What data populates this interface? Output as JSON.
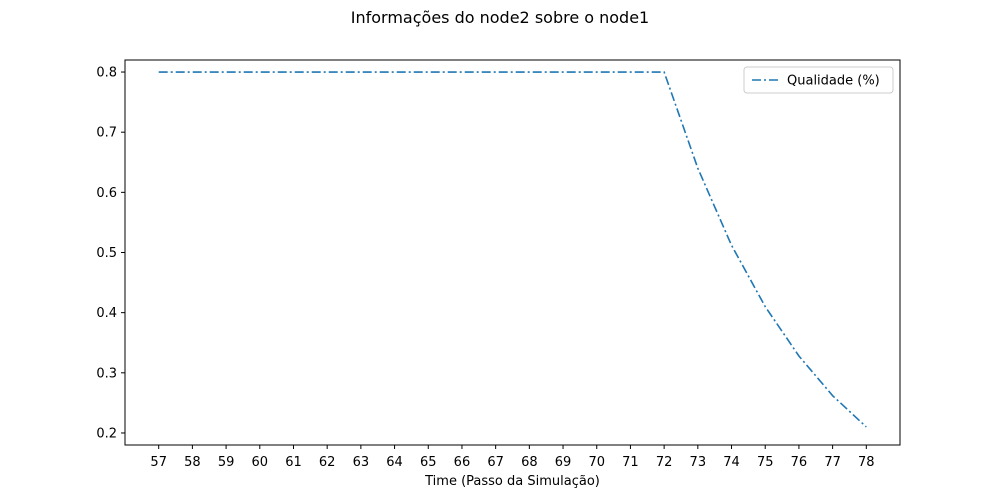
{
  "chart_data": {
    "type": "line",
    "title": "Informações do node2 sobre o node1",
    "xlabel": "Time (Passo da Simulação)",
    "ylabel": "",
    "xlim": [
      56,
      79
    ],
    "ylim": [
      0.18,
      0.82
    ],
    "x_ticks": [
      57,
      58,
      59,
      60,
      61,
      62,
      63,
      64,
      65,
      66,
      67,
      68,
      69,
      70,
      71,
      72,
      73,
      74,
      75,
      76,
      77,
      78
    ],
    "y_ticks": [
      0.2,
      0.3,
      0.4,
      0.5,
      0.6,
      0.7,
      0.8
    ],
    "legend_position": "top-right",
    "grid": false,
    "series": [
      {
        "name": "Qualidade (%)",
        "color": "#1f77b4",
        "line_style": "dash-dot",
        "x": [
          57,
          58,
          59,
          60,
          61,
          62,
          63,
          64,
          65,
          66,
          67,
          68,
          69,
          70,
          71,
          72,
          73,
          74,
          75,
          76,
          77,
          78
        ],
        "y": [
          0.8,
          0.8,
          0.8,
          0.8,
          0.8,
          0.8,
          0.8,
          0.8,
          0.8,
          0.8,
          0.8,
          0.8,
          0.8,
          0.8,
          0.8,
          0.8,
          0.64,
          0.512,
          0.41,
          0.328,
          0.262,
          0.21
        ]
      }
    ]
  }
}
